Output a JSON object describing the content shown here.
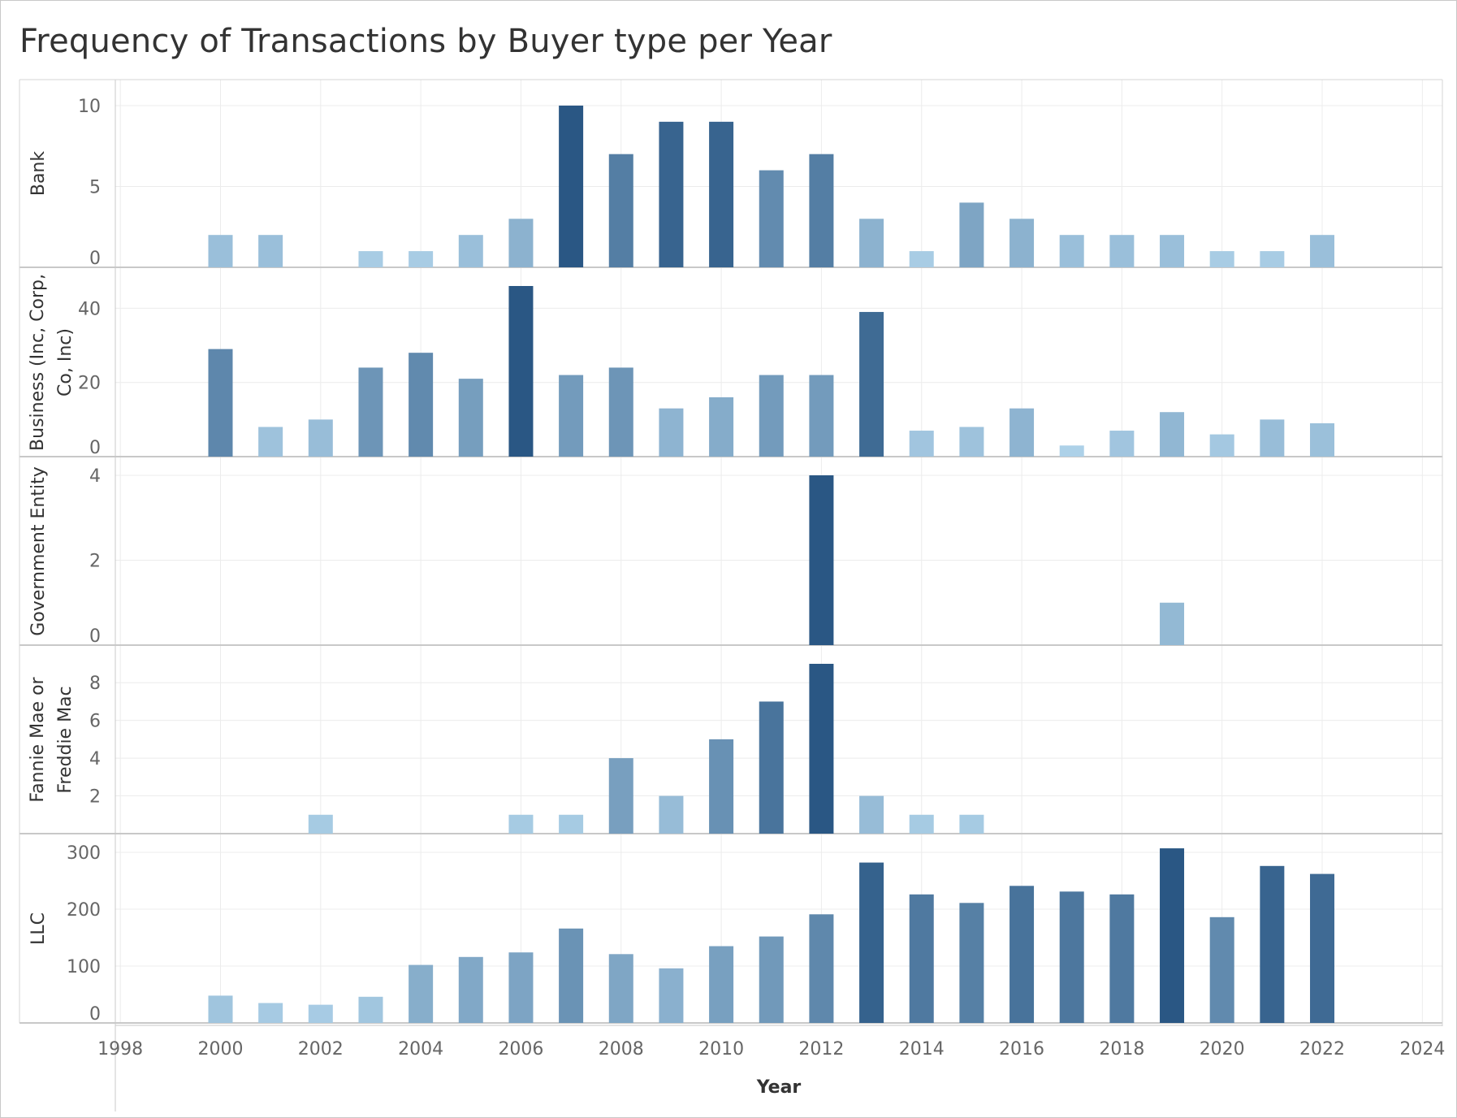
{
  "title": "Frequency of Transactions by Buyer type per Year",
  "chart_data": {
    "type": "bar",
    "title": "Frequency of Transactions by Buyer type per Year",
    "xlabel": "Year",
    "xlim": [
      1997.9,
      2024.4
    ],
    "x_ticks": [
      "1998",
      "2000",
      "2002",
      "2004",
      "2006",
      "2008",
      "2010",
      "2012",
      "2014",
      "2016",
      "2018",
      "2020",
      "2022",
      "2024"
    ],
    "grid": true,
    "color_scale": {
      "low": "#b6d9ef",
      "high": "#2a5784",
      "encodes": "row-relative value"
    },
    "panels": [
      {
        "name": "Bank",
        "ylim": [
          0,
          10.5
        ],
        "y_ticks": [
          "0",
          "5",
          "10"
        ],
        "bars": [
          [
            2000,
            2
          ],
          [
            2001,
            2
          ],
          [
            2003,
            1
          ],
          [
            2004,
            1
          ],
          [
            2005,
            2
          ],
          [
            2006,
            3
          ],
          [
            2007,
            10
          ],
          [
            2008,
            7
          ],
          [
            2009,
            9
          ],
          [
            2010,
            9
          ],
          [
            2011,
            6
          ],
          [
            2012,
            7
          ],
          [
            2013,
            3
          ],
          [
            2014,
            1
          ],
          [
            2015,
            4
          ],
          [
            2016,
            3
          ],
          [
            2017,
            2
          ],
          [
            2018,
            2
          ],
          [
            2019,
            2
          ],
          [
            2020,
            1
          ],
          [
            2021,
            1
          ],
          [
            2022,
            2
          ]
        ]
      },
      {
        "name": "Business (Inc, Corp, Co, Inc)",
        "label_lines": [
          "Business (Inc, Corp,",
          "Co, Inc)"
        ],
        "ylim": [
          0,
          46
        ],
        "y_ticks": [
          "0",
          "20",
          "40"
        ],
        "bars": [
          [
            2000,
            29
          ],
          [
            2001,
            8
          ],
          [
            2002,
            10
          ],
          [
            2003,
            24
          ],
          [
            2004,
            28
          ],
          [
            2005,
            21
          ],
          [
            2006,
            46
          ],
          [
            2007,
            22
          ],
          [
            2008,
            24
          ],
          [
            2009,
            13
          ],
          [
            2010,
            16
          ],
          [
            2011,
            22
          ],
          [
            2012,
            22
          ],
          [
            2013,
            39
          ],
          [
            2014,
            7
          ],
          [
            2015,
            8
          ],
          [
            2016,
            13
          ],
          [
            2017,
            3
          ],
          [
            2018,
            7
          ],
          [
            2019,
            12
          ],
          [
            2020,
            6
          ],
          [
            2021,
            10
          ],
          [
            2022,
            9
          ]
        ]
      },
      {
        "name": "Government Entity",
        "ylim": [
          0,
          4
        ],
        "y_ticks": [
          "0",
          "2",
          "4"
        ],
        "bars": [
          [
            2012,
            4
          ],
          [
            2019,
            1
          ]
        ]
      },
      {
        "name": "Fannie Mae or Freddie Mac",
        "label_lines": [
          "Fannie Mae or",
          "Freddie Mac"
        ],
        "ylim": [
          0,
          9
        ],
        "y_ticks": [
          "2",
          "4",
          "6",
          "8"
        ],
        "bars": [
          [
            2002,
            1
          ],
          [
            2006,
            1
          ],
          [
            2007,
            1
          ],
          [
            2008,
            4
          ],
          [
            2009,
            2
          ],
          [
            2010,
            5
          ],
          [
            2011,
            7
          ],
          [
            2012,
            9
          ],
          [
            2013,
            2
          ],
          [
            2014,
            1
          ],
          [
            2015,
            1
          ]
        ]
      },
      {
        "name": "LLC",
        "ylim": [
          0,
          300
        ],
        "y_ticks": [
          "0",
          "100",
          "200",
          "300"
        ],
        "bars": [
          [
            2000,
            48
          ],
          [
            2001,
            35
          ],
          [
            2002,
            32
          ],
          [
            2003,
            46
          ],
          [
            2004,
            102
          ],
          [
            2005,
            116
          ],
          [
            2006,
            124
          ],
          [
            2007,
            166
          ],
          [
            2008,
            121
          ],
          [
            2009,
            96
          ],
          [
            2010,
            135
          ],
          [
            2011,
            152
          ],
          [
            2012,
            191
          ],
          [
            2013,
            282
          ],
          [
            2014,
            226
          ],
          [
            2015,
            211
          ],
          [
            2016,
            241
          ],
          [
            2017,
            231
          ],
          [
            2018,
            226
          ],
          [
            2019,
            307
          ],
          [
            2020,
            186
          ],
          [
            2021,
            276
          ],
          [
            2022,
            262
          ]
        ]
      }
    ]
  }
}
